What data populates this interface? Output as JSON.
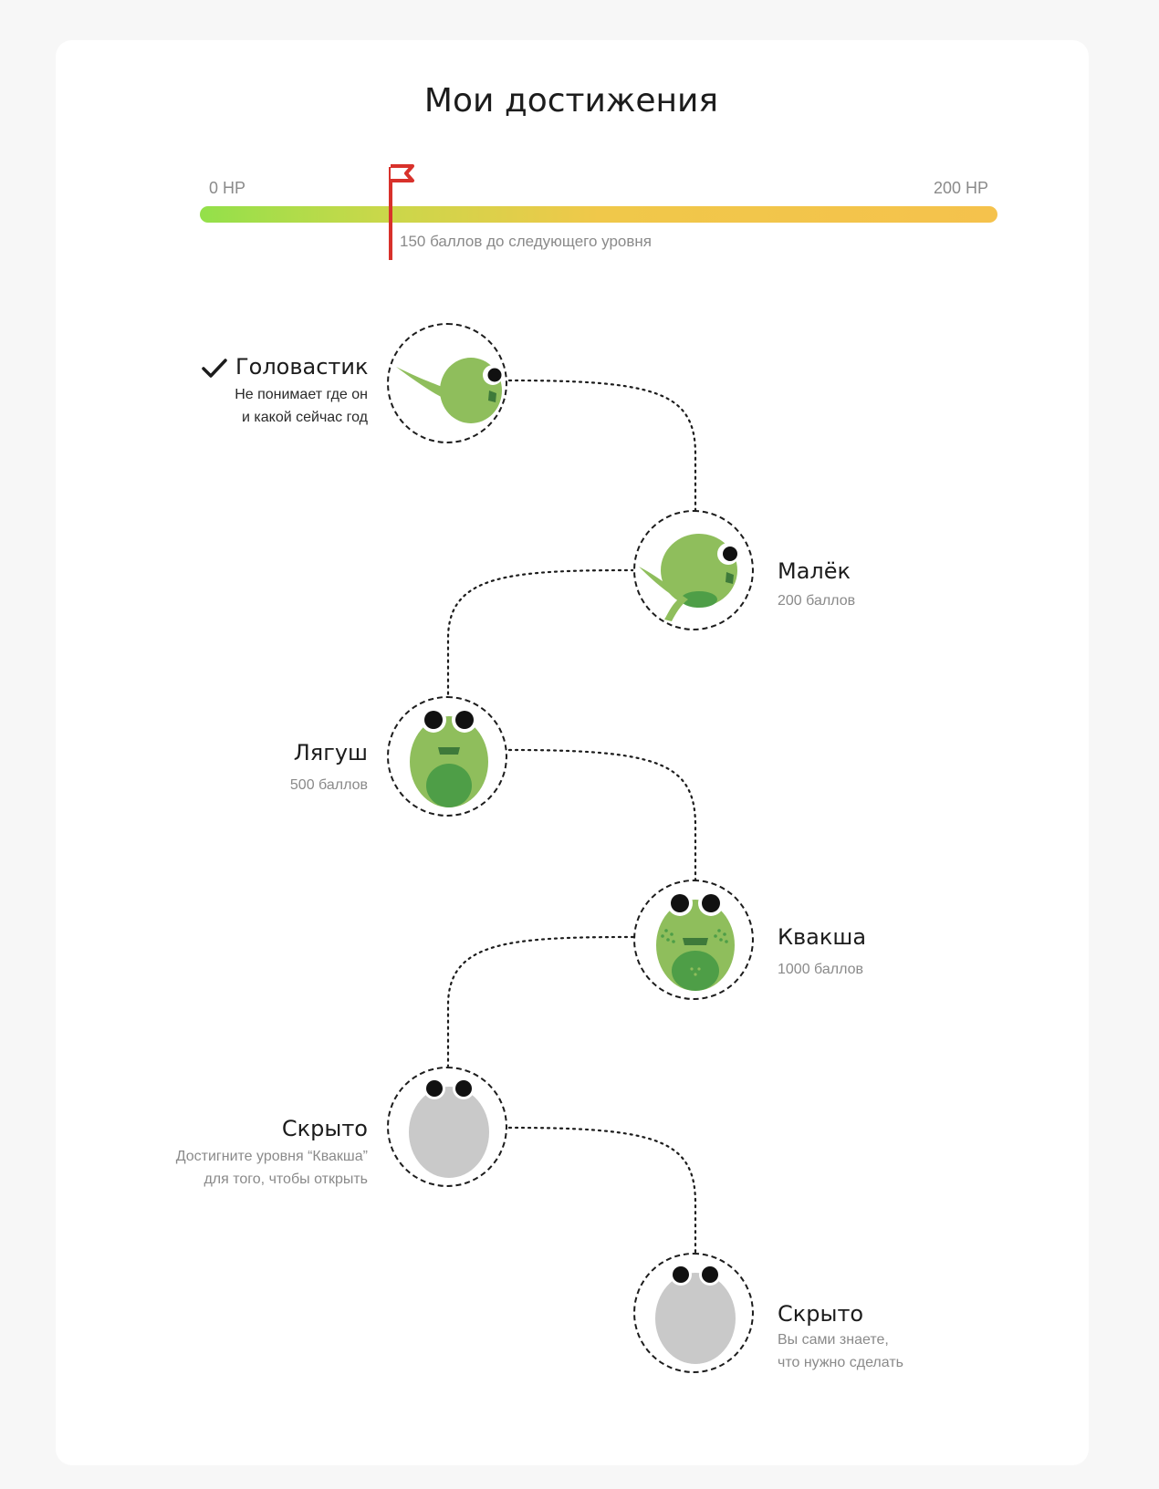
{
  "header": {
    "title": "Мои достижения"
  },
  "progress": {
    "min_label": "0 HP",
    "max_label": "200 HP",
    "remaining_text": "150 баллов до следующего уровня",
    "fraction": 0.24,
    "flag_color": "#d8312b"
  },
  "levels": [
    {
      "name": "Головастик",
      "desc_line1": "Не понимает где он",
      "desc_line2": "и какой сейчас год",
      "status": "completed",
      "icon": "tadpole-icon"
    },
    {
      "name": "Малёк",
      "points": "200 баллов",
      "status": "locked",
      "icon": "froglet-icon"
    },
    {
      "name": "Лягуш",
      "points": "500 баллов",
      "status": "locked",
      "icon": "frog-icon"
    },
    {
      "name": "Квакша",
      "points": "1000 баллов",
      "status": "locked",
      "icon": "tree-frog-icon"
    },
    {
      "name": "Скрыто",
      "desc_line1": "Достигните уровня “Квакша”",
      "desc_line2": "для того, чтобы открыть",
      "status": "hidden",
      "icon": "hidden-frog-icon"
    },
    {
      "name": "Скрыто",
      "desc_line1": "Вы сами знаете,",
      "desc_line2": "что нужно сделать",
      "status": "hidden",
      "icon": "hidden-frog-icon"
    }
  ],
  "colors": {
    "frog_green": "#8fbe5c",
    "frog_dark_green": "#4e9e47",
    "hidden_gray": "#c9c9c9"
  }
}
